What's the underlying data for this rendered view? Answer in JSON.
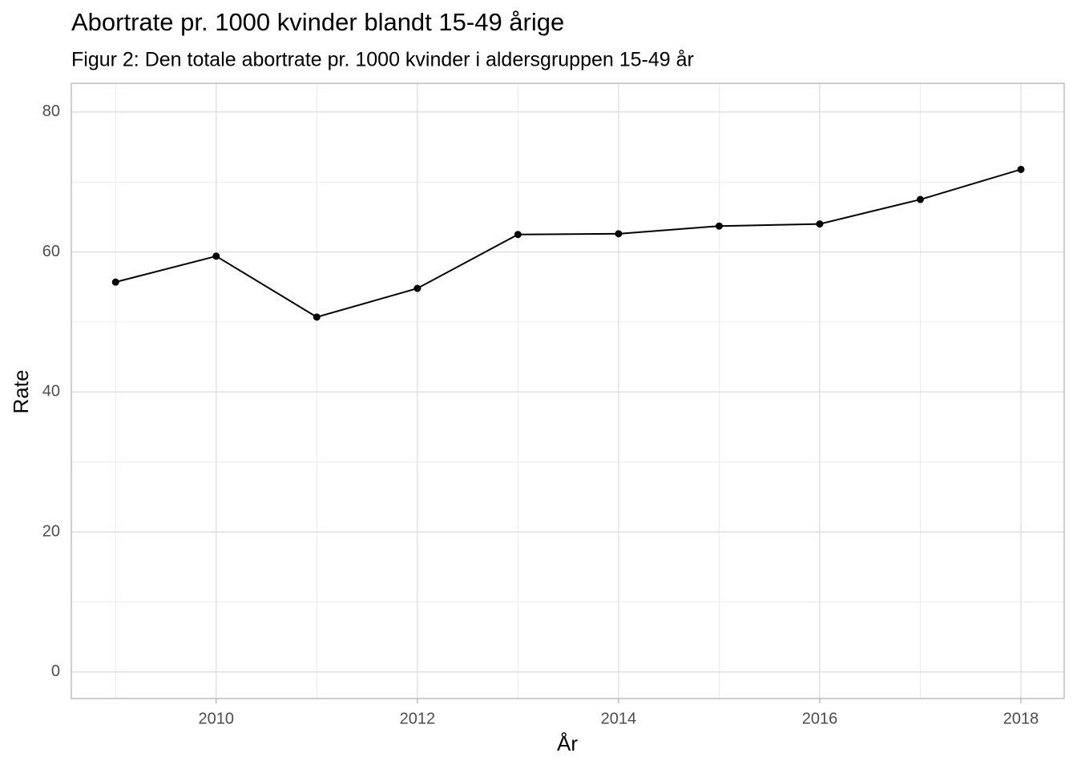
{
  "chart_data": {
    "type": "line",
    "title": "Abortrate pr. 1000 kvinder blandt 15-49 årige",
    "subtitle": "Figur 2: Den totale abortrate pr. 1000 kvinder i aldersgruppen 15-49 år",
    "x_label": "År",
    "y_label": "Rate",
    "x": [
      2009,
      2010,
      2011,
      2012,
      2013,
      2014,
      2015,
      2016,
      2017,
      2018
    ],
    "series": [
      {
        "color": "#000000",
        "values": [
          55.7,
          59.4,
          50.7,
          54.8,
          62.5,
          62.6,
          63.7,
          64.0,
          67.5,
          71.8
        ]
      }
    ],
    "xlim": [
      2008.56,
      2018.43
    ],
    "ylim": [
      -3.8,
      84.1
    ],
    "xticks": [
      2010,
      2012,
      2014,
      2016,
      2018
    ],
    "yticks": [
      0,
      20,
      40,
      60,
      80
    ],
    "xminorticks": [
      2009,
      2011,
      2013,
      2015,
      2017
    ],
    "yminorticks": [
      10,
      30,
      50,
      70
    ],
    "grid": true
  }
}
